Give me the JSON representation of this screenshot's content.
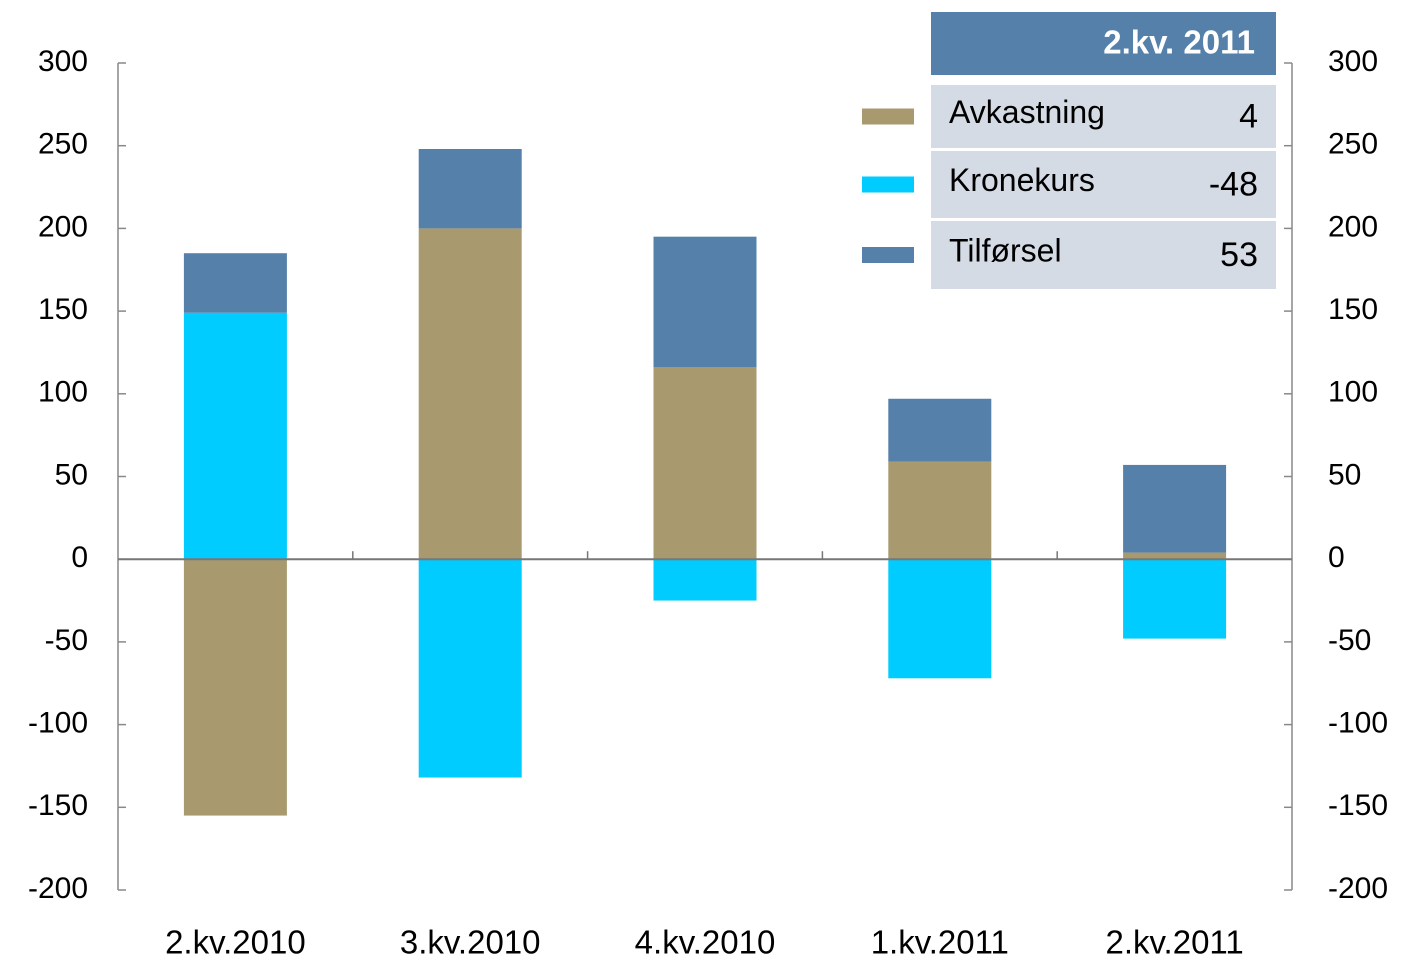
{
  "chart_data": {
    "type": "stacked_bar",
    "categories": [
      "2.kv.2010",
      "3.kv.2010",
      "4.kv.2010",
      "1.kv.2011",
      "2.kv.2011"
    ],
    "series": [
      {
        "name": "Avkastning",
        "color": "#a89a6e",
        "values": [
          -155,
          200,
          116,
          59,
          4
        ]
      },
      {
        "name": "Kronekurs",
        "color": "#00ccff",
        "values": [
          149,
          -132,
          -25,
          -72,
          -48
        ]
      },
      {
        "name": "Tilførsel",
        "color": "#5580aa",
        "values": [
          36,
          48,
          79,
          38,
          53
        ]
      }
    ],
    "legend_title": "2.kv. 2011",
    "ylim": [
      -200,
      300
    ],
    "yticks": [
      -200,
      -150,
      -100,
      -50,
      0,
      50,
      100,
      150,
      200,
      250,
      300
    ],
    "y2lim": [
      -200,
      300
    ],
    "y2ticks": [
      -200,
      -150,
      -100,
      -50,
      0,
      50,
      100,
      150,
      200,
      250,
      300
    ]
  }
}
